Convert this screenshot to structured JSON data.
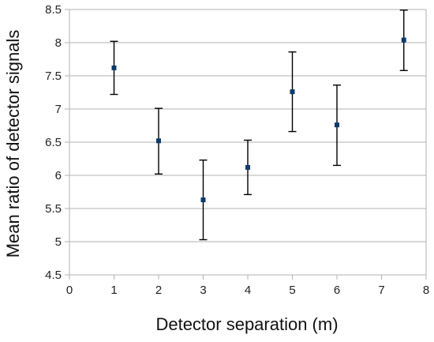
{
  "chart_data": {
    "type": "scatter",
    "title": "",
    "xlabel": "Detector separation (m)",
    "ylabel": "Mean ratio of detector signals",
    "xlim": [
      0,
      8
    ],
    "ylim": [
      4.5,
      8.5
    ],
    "x_ticks": [
      "0",
      "1",
      "2",
      "3",
      "4",
      "5",
      "6",
      "7",
      "8"
    ],
    "y_ticks": [
      "4.5",
      "5",
      "5.5",
      "6",
      "6.5",
      "7",
      "7.5",
      "8",
      "8.5"
    ],
    "grid": "horizontal",
    "legend": "none",
    "marker_color": "#0d3a6b",
    "errorbar_color": "#000000",
    "series": [
      {
        "points": [
          {
            "x": 1,
            "y": 7.62,
            "ylow": 7.22,
            "yhigh": 8.02
          },
          {
            "x": 2,
            "y": 6.52,
            "ylow": 6.02,
            "yhigh": 7.01
          },
          {
            "x": 3,
            "y": 5.63,
            "ylow": 5.03,
            "yhigh": 6.23
          },
          {
            "x": 4,
            "y": 6.12,
            "ylow": 5.71,
            "yhigh": 6.53
          },
          {
            "x": 5,
            "y": 7.26,
            "ylow": 6.66,
            "yhigh": 7.86
          },
          {
            "x": 6,
            "y": 6.76,
            "ylow": 6.15,
            "yhigh": 7.36
          },
          {
            "x": 7.5,
            "y": 8.04,
            "ylow": 7.58,
            "yhigh": 8.49
          }
        ]
      }
    ]
  }
}
